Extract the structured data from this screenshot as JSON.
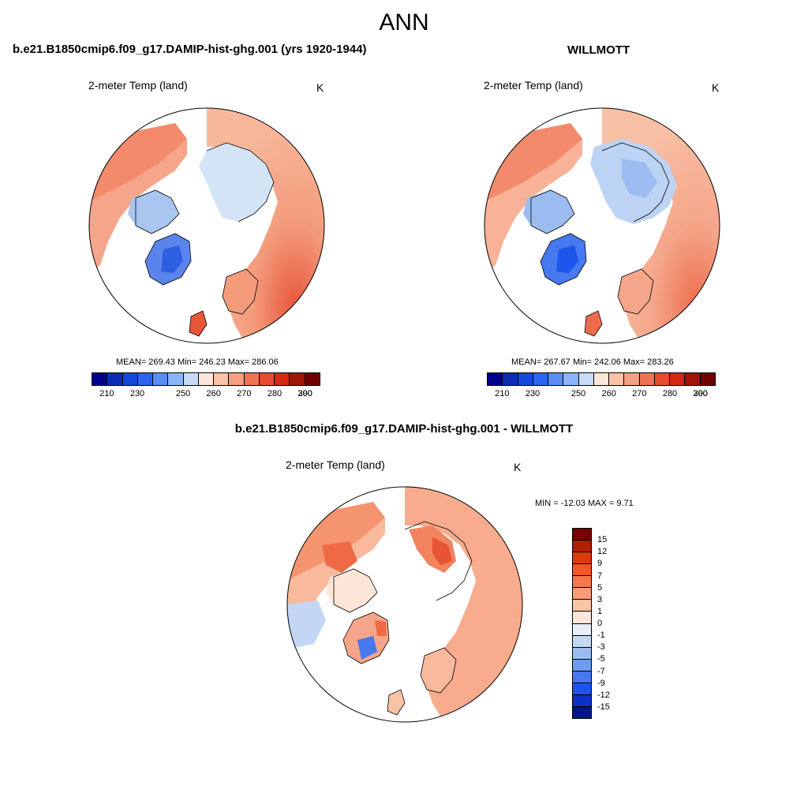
{
  "page": {
    "title": "ANN"
  },
  "panels": [
    {
      "title": "b.e21.B1850cmip6.f09_g17.DAMIP-hist-ghg.001 (yrs 1920-1944)",
      "variable": "2-meter Temp (land)",
      "units": "K",
      "stats": "MEAN= 269.43  Min= 246.23  Max= 286.06"
    },
    {
      "title": "WILLMOTT",
      "variable": "2-meter Temp (land)",
      "units": "K",
      "stats": "MEAN= 267.67  Min= 242.06  Max= 283.26"
    }
  ],
  "abs_colorbar": {
    "colors": [
      "#00008c",
      "#0a2db4",
      "#1448dc",
      "#2d64f0",
      "#5a8cf5",
      "#8cb4fa",
      "#c8dcfa",
      "#fbe6d7",
      "#f9c3a5",
      "#f5a082",
      "#f07355",
      "#e64b2d",
      "#d22814",
      "#a01405",
      "#6e0000"
    ],
    "labels": [
      "210",
      "230",
      "250",
      "260",
      "270",
      "280",
      "290",
      "300"
    ]
  },
  "diff_panel": {
    "title": "b.e21.B1850cmip6.f09_g17.DAMIP-hist-ghg.001 - WILLMOTT",
    "variable": "2-meter Temp (land)",
    "units": "K",
    "minmax": "MIN = -12.03 MAX =   9.71"
  },
  "diff_colorbar": {
    "colors_top_to_bottom": [
      "#780000",
      "#b41e00",
      "#dc3c0a",
      "#f05a23",
      "#f5784b",
      "#f89b78",
      "#fbc3a5",
      "#fde6d7",
      "#e6effa",
      "#c3d7f5",
      "#9bbcf0",
      "#6e9bf0",
      "#4678f0",
      "#1e55eb",
      "#0a32c8",
      "#00148c"
    ],
    "labels": [
      "15",
      "12",
      "9",
      "7",
      "5",
      "3",
      "1",
      "0",
      "-1",
      "-3",
      "-5",
      "-7",
      "-9",
      "-12",
      "-15"
    ]
  }
}
